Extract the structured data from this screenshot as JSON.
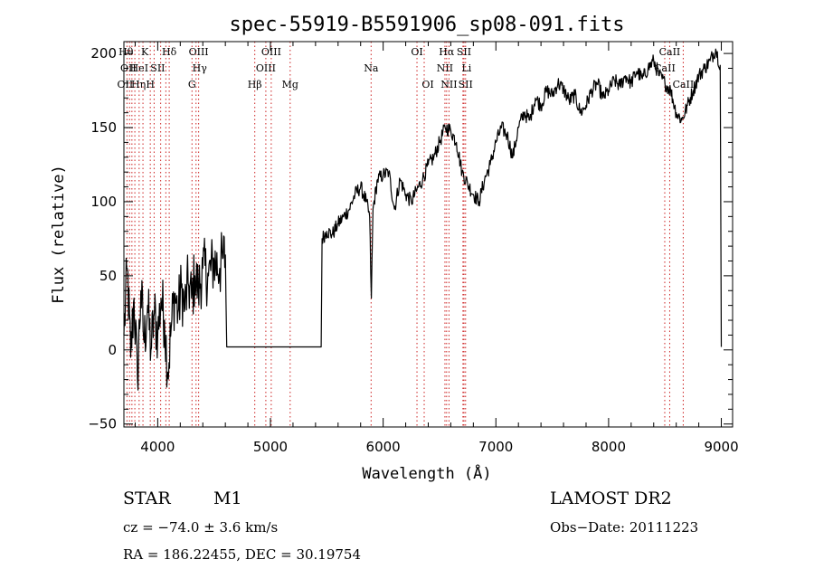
{
  "chart_data": {
    "type": "line",
    "title": "spec-55919-B5591906_sp08-091.fits",
    "xlabel": "Wavelength (Å)",
    "ylabel": "Flux (relative)",
    "xlim": [
      3700,
      9100
    ],
    "ylim": [
      -52,
      208
    ],
    "xticks": [
      4000,
      5000,
      6000,
      7000,
      8000,
      9000
    ],
    "yticks": [
      -50,
      0,
      50,
      100,
      150,
      200
    ],
    "grid": false,
    "line_color": "#000000",
    "marker_line_color": "#cc2222",
    "series": [
      {
        "points": [
          [
            3700,
            10
          ],
          [
            3730,
            55
          ],
          [
            3760,
            -5
          ],
          [
            3790,
            35
          ],
          [
            3820,
            -20
          ],
          [
            3850,
            40
          ],
          [
            3880,
            5
          ],
          [
            3910,
            30
          ],
          [
            3940,
            0
          ],
          [
            3970,
            25
          ],
          [
            4000,
            10
          ],
          [
            4030,
            35
          ],
          [
            4060,
            20
          ],
          [
            4090,
            -15
          ],
          [
            4120,
            15
          ],
          [
            4150,
            38
          ],
          [
            4180,
            25
          ],
          [
            4210,
            42
          ],
          [
            4240,
            28
          ],
          [
            4270,
            45
          ],
          [
            4300,
            35
          ],
          [
            4330,
            50
          ],
          [
            4360,
            40
          ],
          [
            4400,
            55
          ],
          [
            4450,
            50
          ],
          [
            4500,
            60
          ],
          [
            4550,
            55
          ],
          [
            4580,
            62
          ],
          [
            4600,
            64
          ],
          [
            4612,
            2
          ],
          [
            5450,
            2
          ],
          [
            5458,
            75
          ],
          [
            5500,
            80
          ],
          [
            5550,
            78
          ],
          [
            5600,
            85
          ],
          [
            5650,
            90
          ],
          [
            5700,
            95
          ],
          [
            5750,
            105
          ],
          [
            5800,
            110
          ],
          [
            5850,
            100
          ],
          [
            5880,
            90
          ],
          [
            5895,
            35
          ],
          [
            5910,
            95
          ],
          [
            5950,
            115
          ],
          [
            6000,
            118
          ],
          [
            6050,
            120
          ],
          [
            6100,
            95
          ],
          [
            6150,
            115
          ],
          [
            6200,
            105
          ],
          [
            6250,
            100
          ],
          [
            6300,
            108
          ],
          [
            6350,
            115
          ],
          [
            6400,
            125
          ],
          [
            6450,
            130
          ],
          [
            6500,
            140
          ],
          [
            6550,
            150
          ],
          [
            6600,
            148
          ],
          [
            6650,
            140
          ],
          [
            6700,
            120
          ],
          [
            6750,
            112
          ],
          [
            6800,
            105
          ],
          [
            6850,
            100
          ],
          [
            6900,
            115
          ],
          [
            6950,
            125
          ],
          [
            7000,
            140
          ],
          [
            7050,
            150
          ],
          [
            7100,
            145
          ],
          [
            7150,
            130
          ],
          [
            7200,
            150
          ],
          [
            7250,
            160
          ],
          [
            7300,
            155
          ],
          [
            7350,
            170
          ],
          [
            7400,
            165
          ],
          [
            7450,
            175
          ],
          [
            7500,
            172
          ],
          [
            7550,
            180
          ],
          [
            7600,
            176
          ],
          [
            7650,
            168
          ],
          [
            7700,
            172
          ],
          [
            7750,
            160
          ],
          [
            7800,
            165
          ],
          [
            7850,
            175
          ],
          [
            7900,
            180
          ],
          [
            7950,
            170
          ],
          [
            8000,
            175
          ],
          [
            8050,
            182
          ],
          [
            8100,
            178
          ],
          [
            8150,
            185
          ],
          [
            8200,
            180
          ],
          [
            8250,
            188
          ],
          [
            8300,
            183
          ],
          [
            8350,
            190
          ],
          [
            8400,
            195
          ],
          [
            8450,
            185
          ],
          [
            8500,
            180
          ],
          [
            8550,
            175
          ],
          [
            8600,
            160
          ],
          [
            8650,
            155
          ],
          [
            8700,
            165
          ],
          [
            8750,
            175
          ],
          [
            8800,
            185
          ],
          [
            8850,
            190
          ],
          [
            8900,
            195
          ],
          [
            8950,
            203
          ],
          [
            8990,
            192
          ],
          [
            9000,
            2
          ]
        ]
      }
    ],
    "lines": [
      {
        "wl": 3727,
        "label": "OII",
        "row": 2,
        "dx": -2
      },
      {
        "wl": 3750,
        "label": "Hθ",
        "row": 0,
        "dx": -4
      },
      {
        "wl": 3771,
        "label": "OII",
        "row": 1,
        "dx": -4
      },
      {
        "wl": 3797,
        "label": "Hη",
        "row": 2,
        "dx": 4
      },
      {
        "wl": 3835,
        "label": "HeI",
        "row": 1,
        "dx": 0
      },
      {
        "wl": 3869,
        "label": "K",
        "row": 0,
        "dx": 2
      },
      {
        "wl": 3934,
        "label": "H",
        "row": 2,
        "dx": 0
      },
      {
        "wl": 3968,
        "label": "SII",
        "row": 1,
        "dx": 4
      },
      {
        "wl": 4026,
        "label": "",
        "row": 0,
        "dx": 0
      },
      {
        "wl": 4072,
        "label": "",
        "row": 0,
        "dx": 0
      },
      {
        "wl": 4102,
        "label": "Hδ",
        "row": 0,
        "dx": 0
      },
      {
        "wl": 4304,
        "label": "G",
        "row": 2,
        "dx": 0
      },
      {
        "wl": 4340,
        "label": "Hγ",
        "row": 1,
        "dx": 4
      },
      {
        "wl": 4363,
        "label": "OIII",
        "row": 0,
        "dx": 0
      },
      {
        "wl": 4861,
        "label": "Hβ",
        "row": 2,
        "dx": 0
      },
      {
        "wl": 4959,
        "label": "OIII",
        "row": 1,
        "dx": 0
      },
      {
        "wl": 5007,
        "label": "OIII",
        "row": 0,
        "dx": 0
      },
      {
        "wl": 5175,
        "label": "Mg",
        "row": 2,
        "dx": 0
      },
      {
        "wl": 5893,
        "label": "Na",
        "row": 1,
        "dx": 0
      },
      {
        "wl": 6300,
        "label": "OI",
        "row": 0,
        "dx": 0
      },
      {
        "wl": 6364,
        "label": "OI",
        "row": 2,
        "dx": 4
      },
      {
        "wl": 6548,
        "label": "NII",
        "row": 1,
        "dx": 0
      },
      {
        "wl": 6563,
        "label": "Hα",
        "row": 0,
        "dx": 0
      },
      {
        "wl": 6584,
        "label": "NII",
        "row": 2,
        "dx": 0
      },
      {
        "wl": 6708,
        "label": "Li",
        "row": 1,
        "dx": 4
      },
      {
        "wl": 6717,
        "label": "SII",
        "row": 0,
        "dx": 0
      },
      {
        "wl": 6731,
        "label": "SII",
        "row": 2,
        "dx": 0
      },
      {
        "wl": 8498,
        "label": "CaII",
        "row": 1,
        "dx": 0
      },
      {
        "wl": 8542,
        "label": "CaII",
        "row": 0,
        "dx": 0
      },
      {
        "wl": 8662,
        "label": "CaII",
        "row": 2,
        "dx": 0
      }
    ]
  },
  "info": {
    "object_type": "STAR",
    "subclass": "M1",
    "survey": "LAMOST DR2",
    "redshift": "cz = −74.0 ± 3.6 km/s",
    "obs_date": "Obs−Date: 20111223",
    "coords": "RA = 186.22455, DEC =  30.19754"
  }
}
